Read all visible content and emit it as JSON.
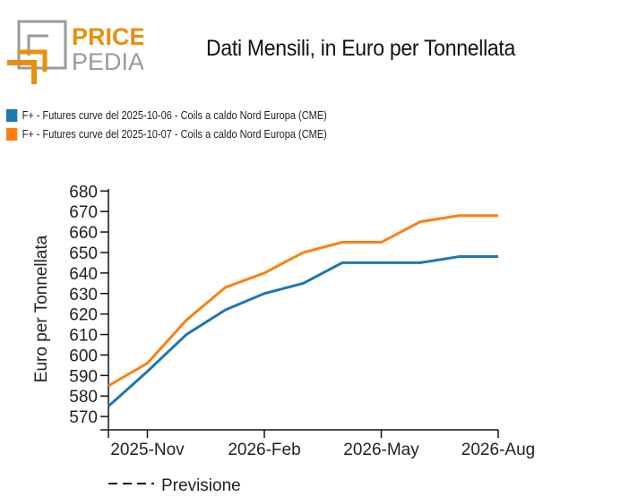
{
  "logo": {
    "text_top": "PRICE",
    "text_bottom": "PEDIA",
    "colors": {
      "orange": "#E8900B",
      "gray": "#9A9A9A"
    }
  },
  "title": "Dati Mensili, in Euro per Tonnellata",
  "chart_data": {
    "type": "line",
    "title": "Dati Mensili, in Euro per Tonnellata",
    "xlabel": "",
    "ylabel": "Euro per Tonnellata",
    "x": [
      "2025-10",
      "2025-11",
      "2025-12",
      "2026-01",
      "2026-02",
      "2026-03",
      "2026-04",
      "2026-05",
      "2026-06",
      "2026-07",
      "2026-08"
    ],
    "x_tick_labels": [
      {
        "x": "2025-11",
        "label": "2025-Nov"
      },
      {
        "x": "2026-02",
        "label": "2026-Feb"
      },
      {
        "x": "2026-05",
        "label": "2026-May"
      },
      {
        "x": "2026-08",
        "label": "2026-Aug"
      }
    ],
    "y_ticks": [
      570,
      580,
      590,
      600,
      610,
      620,
      630,
      640,
      650,
      660,
      670,
      680
    ],
    "ylim": [
      563.5,
      681
    ],
    "grid": false,
    "legend_placement": "top-left",
    "series": [
      {
        "name": "F+ - Futures curve del 2025-10-06 - Coils a caldo Nord Europa (CME)",
        "color": "#1F77B4",
        "values": [
          575,
          592,
          610,
          622,
          630,
          635,
          645,
          645,
          645,
          648,
          648
        ]
      },
      {
        "name": "F+ - Futures curve del 2025-10-07 - Coils a caldo Nord Europa (CME)",
        "color": "#FF7F0E",
        "values": [
          585,
          596,
          617,
          633,
          640,
          650,
          655,
          655,
          665,
          668,
          668
        ]
      }
    ],
    "annotation_legend": "Previsione"
  }
}
